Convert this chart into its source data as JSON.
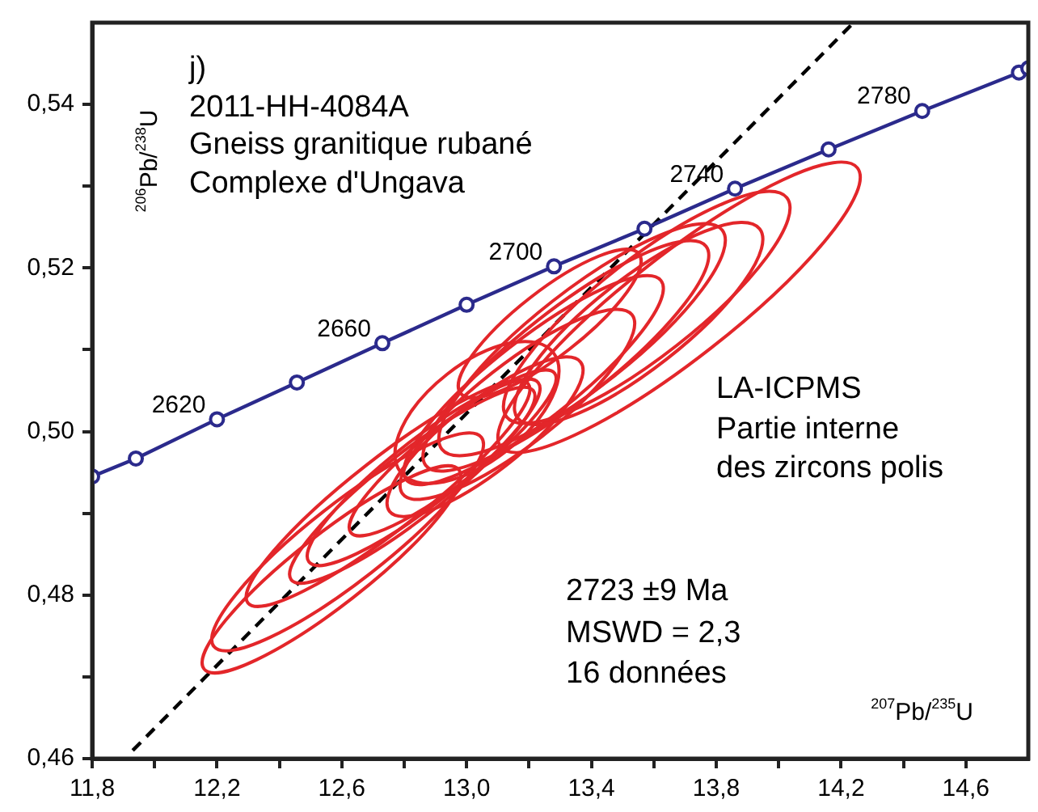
{
  "chart_data": {
    "type": "line",
    "xlabel": "$^{207}$Pb/$^{235}$U",
    "ylabel": "$^{206}$Pb/$^{238}$U",
    "xlim": [
      11.8,
      14.8
    ],
    "ylim": [
      0.46,
      0.55
    ],
    "xticks": [
      {
        "value": 11.8,
        "label": "11,8"
      },
      {
        "value": 12.0,
        "label": null
      },
      {
        "value": 12.2,
        "label": "12,2"
      },
      {
        "value": 12.4,
        "label": null
      },
      {
        "value": 12.6,
        "label": "12,6"
      },
      {
        "value": 12.8,
        "label": null
      },
      {
        "value": 13.0,
        "label": "13,0"
      },
      {
        "value": 13.2,
        "label": null
      },
      {
        "value": 13.4,
        "label": "13,4"
      },
      {
        "value": 13.6,
        "label": null
      },
      {
        "value": 13.8,
        "label": "13,8"
      },
      {
        "value": 14.0,
        "label": null
      },
      {
        "value": 14.2,
        "label": "14,2"
      },
      {
        "value": 14.4,
        "label": null
      },
      {
        "value": 14.6,
        "label": "14,6"
      }
    ],
    "yticks": [
      {
        "value": 0.46,
        "label": "0,46"
      },
      {
        "value": 0.47,
        "label": null
      },
      {
        "value": 0.48,
        "label": "0,48"
      },
      {
        "value": 0.49,
        "label": null
      },
      {
        "value": 0.5,
        "label": "0,50"
      },
      {
        "value": 0.51,
        "label": null
      },
      {
        "value": 0.52,
        "label": "0,52"
      },
      {
        "value": 0.53,
        "label": null
      },
      {
        "value": 0.54,
        "label": "0,54"
      }
    ],
    "grid": false,
    "legend": false,
    "annotations": [
      "j)",
      "2011-HH-4084A",
      "Gneiss granitique rubané",
      "Complexe d'Ungava",
      "LA-ICPMS",
      "Partie interne",
      "des zircons polis",
      "2723 ±9 Ma",
      "MSWD = 2,3",
      "16 données",
      {
        "text": "2620",
        "x": 12.2,
        "y": 0.5015
      },
      {
        "text": "2660",
        "x": 12.73,
        "y": 0.5108
      },
      {
        "text": "2700",
        "x": 13.28,
        "y": 0.5202
      },
      {
        "text": "2740",
        "x": 13.86,
        "y": 0.5297
      },
      {
        "text": "2780",
        "x": 14.46,
        "y": 0.5392
      }
    ],
    "series": [
      {
        "type": "line",
        "color": "#2b2a8c",
        "marker": "circle",
        "x": [
          11.8,
          11.94,
          12.2,
          12.456,
          12.73,
          13.0,
          13.28,
          13.57,
          13.86,
          14.16,
          14.46,
          14.77,
          14.8
        ],
        "values": [
          0.4945,
          0.4967,
          0.5015,
          0.506,
          0.5108,
          0.5155,
          0.5202,
          0.5248,
          0.5297,
          0.5345,
          0.5392,
          0.5439,
          0.5444
        ]
      },
      {
        "type": "line",
        "color": "#000000",
        "marker": "none",
        "line_style": "dashed",
        "x": [
          11.93,
          14.24
        ],
        "values": [
          0.461,
          0.55
        ]
      }
    ]
  }
}
